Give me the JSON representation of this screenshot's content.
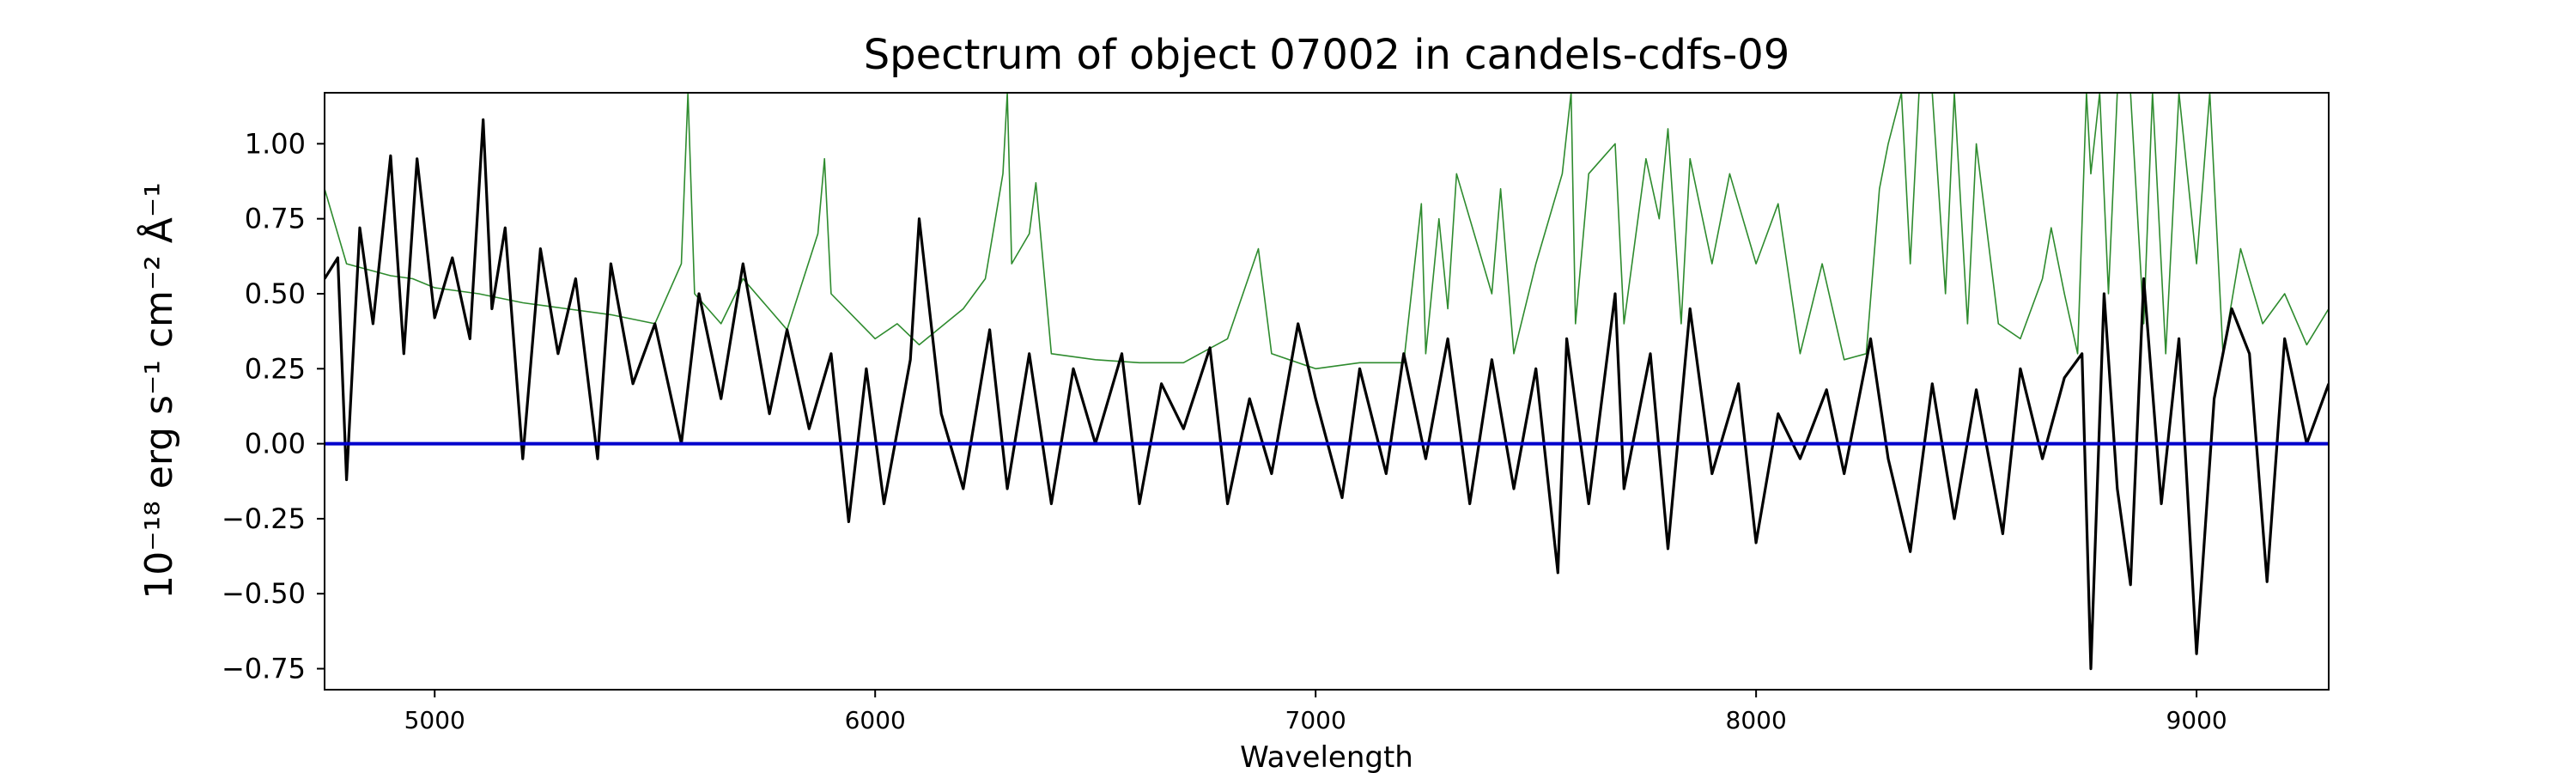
{
  "chart_data": {
    "type": "line",
    "title": "Spectrum of object 07002 in candels-cdfs-09",
    "xlabel": "Wavelength",
    "ylabel": "10⁻¹⁸ erg s⁻¹ cm⁻² Å⁻¹",
    "xlim": [
      4750,
      9300
    ],
    "ylim": [
      -0.82,
      1.17
    ],
    "xticks": [
      5000,
      6000,
      7000,
      8000,
      9000
    ],
    "xtick_labels": [
      "5000",
      "6000",
      "7000",
      "8000",
      "9000"
    ],
    "yticks": [
      1.0,
      0.75,
      0.5,
      0.25,
      0.0,
      -0.25,
      -0.5,
      -0.75
    ],
    "ytick_labels": [
      "1.00",
      "0.75",
      "0.50",
      "0.25",
      "0.00",
      "−0.25",
      "−0.50",
      "−0.75"
    ],
    "grid": false,
    "legend": "none",
    "series": [
      {
        "role": "flux",
        "color": "#000000",
        "x": [
          4750,
          4780,
          4800,
          4830,
          4860,
          4900,
          4930,
          4960,
          5000,
          5040,
          5080,
          5110,
          5130,
          5160,
          5200,
          5240,
          5280,
          5320,
          5370,
          5400,
          5450,
          5500,
          5560,
          5600,
          5650,
          5700,
          5760,
          5800,
          5850,
          5900,
          5940,
          5980,
          6020,
          6080,
          6100,
          6150,
          6200,
          6260,
          6300,
          6350,
          6400,
          6450,
          6500,
          6560,
          6600,
          6650,
          6700,
          6760,
          6800,
          6850,
          6900,
          6960,
          7000,
          7060,
          7100,
          7160,
          7200,
          7250,
          7300,
          7350,
          7400,
          7450,
          7500,
          7550,
          7570,
          7620,
          7680,
          7700,
          7760,
          7800,
          7850,
          7900,
          7960,
          8000,
          8050,
          8100,
          8160,
          8200,
          8260,
          8300,
          8350,
          8400,
          8450,
          8500,
          8560,
          8600,
          8650,
          8700,
          8740,
          8760,
          8790,
          8820,
          8850,
          8880,
          8920,
          8960,
          9000,
          9040,
          9080,
          9120,
          9160,
          9200,
          9250,
          9300
        ],
        "y": [
          0.55,
          0.62,
          -0.12,
          0.72,
          0.4,
          0.96,
          0.3,
          0.95,
          0.42,
          0.62,
          0.35,
          1.08,
          0.45,
          0.72,
          -0.05,
          0.65,
          0.3,
          0.55,
          -0.05,
          0.6,
          0.2,
          0.4,
          0.0,
          0.5,
          0.15,
          0.6,
          0.1,
          0.38,
          0.05,
          0.3,
          -0.26,
          0.25,
          -0.2,
          0.28,
          0.75,
          0.1,
          -0.15,
          0.38,
          -0.15,
          0.3,
          -0.2,
          0.25,
          0.0,
          0.3,
          -0.2,
          0.2,
          0.05,
          0.32,
          -0.2,
          0.15,
          -0.1,
          0.4,
          0.15,
          -0.18,
          0.25,
          -0.1,
          0.3,
          -0.05,
          0.35,
          -0.2,
          0.28,
          -0.15,
          0.25,
          -0.43,
          0.35,
          -0.2,
          0.5,
          -0.15,
          0.3,
          -0.35,
          0.45,
          -0.1,
          0.2,
          -0.33,
          0.1,
          -0.05,
          0.18,
          -0.1,
          0.35,
          -0.05,
          -0.36,
          0.2,
          -0.25,
          0.18,
          -0.3,
          0.25,
          -0.05,
          0.22,
          0.3,
          -0.75,
          0.5,
          -0.15,
          -0.47,
          0.55,
          -0.2,
          0.35,
          -0.7,
          0.15,
          0.45,
          0.3,
          -0.46,
          0.35,
          0.0,
          0.2
        ]
      },
      {
        "role": "error",
        "color": "#2e8b2e",
        "x": [
          4750,
          4800,
          4850,
          4900,
          4950,
          5000,
          5100,
          5200,
          5300,
          5400,
          5500,
          5560,
          5575,
          5590,
          5650,
          5700,
          5800,
          5870,
          5885,
          5900,
          6000,
          6050,
          6100,
          6200,
          6250,
          6290,
          6300,
          6310,
          6350,
          6365,
          6400,
          6500,
          6600,
          6700,
          6800,
          6870,
          6900,
          7000,
          7100,
          7200,
          7240,
          7250,
          7280,
          7300,
          7320,
          7400,
          7420,
          7450,
          7500,
          7560,
          7580,
          7590,
          7620,
          7650,
          7680,
          7700,
          7750,
          7780,
          7800,
          7830,
          7850,
          7900,
          7940,
          8000,
          8050,
          8100,
          8150,
          8200,
          8250,
          8280,
          8300,
          8330,
          8350,
          8370,
          8400,
          8430,
          8450,
          8480,
          8500,
          8550,
          8600,
          8650,
          8670,
          8700,
          8730,
          8750,
          8760,
          8780,
          8800,
          8820,
          8850,
          8880,
          8900,
          8930,
          8960,
          9000,
          9030,
          9060,
          9100,
          9150,
          9200,
          9250,
          9300
        ],
        "y": [
          0.85,
          0.6,
          0.58,
          0.56,
          0.55,
          0.52,
          0.5,
          0.47,
          0.45,
          0.43,
          0.4,
          0.6,
          1.17,
          0.5,
          0.4,
          0.55,
          0.38,
          0.7,
          0.95,
          0.5,
          0.35,
          0.4,
          0.33,
          0.45,
          0.55,
          0.9,
          1.17,
          0.6,
          0.7,
          0.87,
          0.3,
          0.28,
          0.27,
          0.27,
          0.35,
          0.65,
          0.3,
          0.25,
          0.27,
          0.27,
          0.8,
          0.3,
          0.75,
          0.45,
          0.9,
          0.5,
          0.85,
          0.3,
          0.6,
          0.9,
          1.17,
          0.4,
          0.9,
          0.95,
          1.0,
          0.4,
          0.95,
          0.75,
          1.05,
          0.4,
          0.95,
          0.6,
          0.9,
          0.6,
          0.8,
          0.3,
          0.6,
          0.28,
          0.3,
          0.85,
          1.0,
          1.17,
          0.6,
          1.17,
          1.17,
          0.5,
          1.17,
          0.4,
          1.0,
          0.4,
          0.35,
          0.55,
          0.72,
          0.5,
          0.3,
          1.17,
          0.9,
          1.17,
          0.5,
          1.17,
          1.17,
          0.4,
          1.17,
          0.3,
          1.17,
          0.6,
          1.17,
          0.3,
          0.65,
          0.4,
          0.5,
          0.33,
          0.45
        ]
      },
      {
        "role": "zero",
        "color": "#0000cc",
        "x": [
          4750,
          9300
        ],
        "y": [
          0.0,
          0.0
        ]
      }
    ]
  }
}
